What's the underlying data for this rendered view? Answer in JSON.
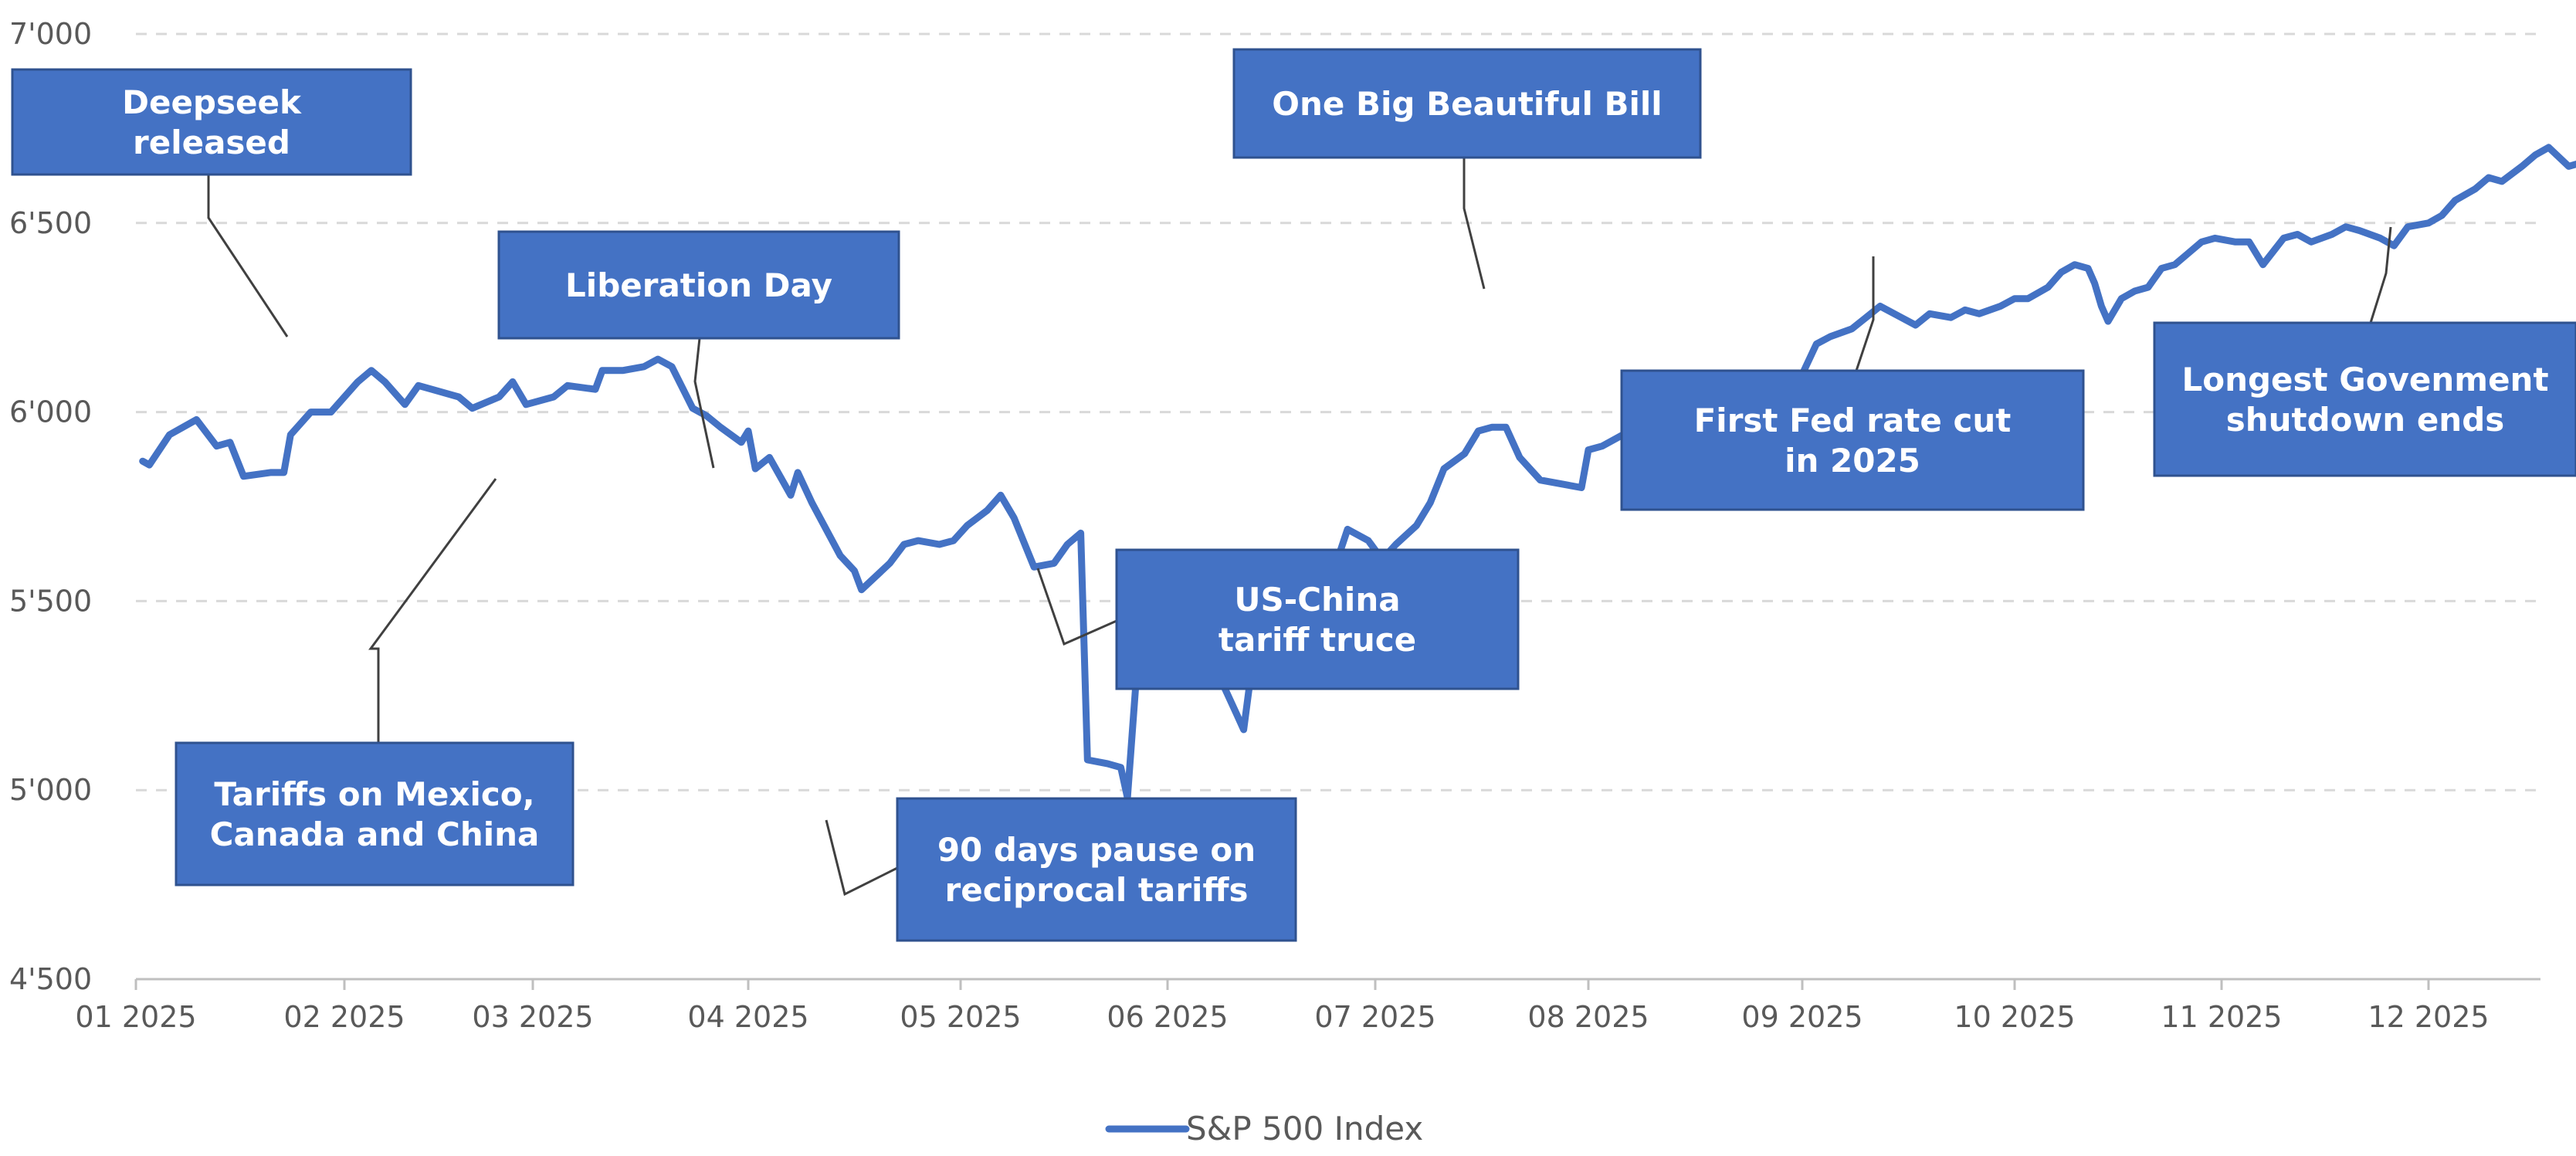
{
  "chart_data": {
    "type": "line",
    "title": "",
    "xlabel": "",
    "ylabel": "",
    "ylim": [
      4500,
      7000
    ],
    "y_ticks": [
      "4'500",
      "5'000",
      "5'500",
      "6'000",
      "6'500",
      "7'000"
    ],
    "y_tick_values": [
      4500,
      5000,
      5500,
      6000,
      6500,
      7000
    ],
    "x_ticks": [
      "01 2025",
      "02 2025",
      "03 2025",
      "04 2025",
      "05 2025",
      "06 2025",
      "07 2025",
      "08 2025",
      "09 2025",
      "10 2025",
      "11 2025",
      "12 2025"
    ],
    "grid": true,
    "legend_position": "bottom",
    "series": [
      {
        "name": "S&P 500 Index",
        "color": "#4472C4",
        "points": [
          [
            "2025-01-02",
            5870
          ],
          [
            "2025-01-03",
            5860
          ],
          [
            "2025-01-06",
            5940
          ],
          [
            "2025-01-08",
            5960
          ],
          [
            "2025-01-10",
            5980
          ],
          [
            "2025-01-13",
            5910
          ],
          [
            "2025-01-15",
            5920
          ],
          [
            "2025-01-17",
            5830
          ],
          [
            "2025-01-21",
            5840
          ],
          [
            "2025-01-23",
            5840
          ],
          [
            "2025-01-24",
            5940
          ],
          [
            "2025-01-27",
            6000
          ],
          [
            "2025-01-30",
            6000
          ],
          [
            "2025-02-03",
            6080
          ],
          [
            "2025-02-05",
            6110
          ],
          [
            "2025-02-07",
            6080
          ],
          [
            "2025-02-10",
            6020
          ],
          [
            "2025-02-12",
            6070
          ],
          [
            "2025-02-14",
            6060
          ],
          [
            "2025-02-18",
            6040
          ],
          [
            "2025-02-20",
            6010
          ],
          [
            "2025-02-24",
            6040
          ],
          [
            "2025-02-26",
            6080
          ],
          [
            "2025-02-28",
            6020
          ],
          [
            "2025-03-04",
            6040
          ],
          [
            "2025-03-06",
            6070
          ],
          [
            "2025-03-10",
            6060
          ],
          [
            "2025-03-11",
            6110
          ],
          [
            "2025-03-14",
            6110
          ],
          [
            "2025-03-17",
            6120
          ],
          [
            "2025-03-19",
            6140
          ],
          [
            "2025-03-21",
            6120
          ],
          [
            "2025-03-24",
            6010
          ],
          [
            "2025-03-26",
            5990
          ],
          [
            "2025-03-28",
            5960
          ],
          [
            "2025-03-31",
            5920
          ],
          [
            "2025-04-01",
            5950
          ],
          [
            "2025-04-02",
            5850
          ],
          [
            "2025-04-04",
            5880
          ],
          [
            "2025-04-07",
            5780
          ],
          [
            "2025-04-08",
            5840
          ],
          [
            "2025-04-10",
            5760
          ],
          [
            "2025-04-14",
            5620
          ],
          [
            "2025-04-16",
            5580
          ],
          [
            "2025-04-17",
            5530
          ],
          [
            "2025-04-21",
            5600
          ],
          [
            "2025-04-23",
            5650
          ],
          [
            "2025-04-25",
            5660
          ],
          [
            "2025-04-28",
            5650
          ],
          [
            "2025-04-30",
            5660
          ],
          [
            "2025-05-02",
            5700
          ],
          [
            "2025-05-05",
            5740
          ],
          [
            "2025-05-07",
            5780
          ],
          [
            "2025-05-09",
            5720
          ],
          [
            "2025-05-12",
            5590
          ],
          [
            "2025-05-15",
            5600
          ],
          [
            "2025-05-17",
            5650
          ],
          [
            "2025-05-19",
            5680
          ],
          [
            "2025-05-20",
            5080
          ],
          [
            "2025-05-23",
            5070
          ],
          [
            "2025-05-25",
            5060
          ],
          [
            "2025-05-26",
            4980
          ],
          [
            "2025-05-28",
            5460
          ],
          [
            "2025-05-29",
            5280
          ],
          [
            "2025-05-31",
            5350
          ],
          [
            "2025-06-02",
            5380
          ],
          [
            "2025-06-04",
            5400
          ],
          [
            "2025-06-06",
            5280
          ],
          [
            "2025-06-09",
            5280
          ],
          [
            "2025-06-11",
            5200
          ],
          [
            "2025-06-12",
            5160
          ],
          [
            "2025-06-13",
            5300
          ],
          [
            "2025-06-16",
            5450
          ],
          [
            "2025-06-18",
            5520
          ],
          [
            "2025-06-20",
            5530
          ],
          [
            "2025-06-23",
            5540
          ],
          [
            "2025-06-25",
            5580
          ],
          [
            "2025-06-27",
            5690
          ],
          [
            "2025-06-30",
            5660
          ],
          [
            "2025-07-02",
            5610
          ],
          [
            "2025-07-04",
            5650
          ],
          [
            "2025-07-07",
            5700
          ],
          [
            "2025-07-09",
            5760
          ],
          [
            "2025-07-11",
            5850
          ],
          [
            "2025-07-14",
            5890
          ],
          [
            "2025-07-16",
            5950
          ],
          [
            "2025-07-18",
            5960
          ],
          [
            "2025-07-20",
            5960
          ],
          [
            "2025-07-22",
            5880
          ],
          [
            "2025-07-25",
            5820
          ],
          [
            "2025-07-28",
            5810
          ],
          [
            "2025-07-31",
            5800
          ],
          [
            "2025-08-01",
            5900
          ],
          [
            "2025-08-03",
            5910
          ],
          [
            "2025-08-05",
            5930
          ],
          [
            "2025-08-07",
            5950
          ],
          [
            "2025-08-10",
            5970
          ],
          [
            "2025-08-12",
            6000
          ],
          [
            "2025-08-15",
            6030
          ],
          [
            "2025-08-17",
            6040
          ],
          [
            "2025-08-18",
            6000
          ],
          [
            "2025-08-20",
            6030
          ],
          [
            "2025-08-22",
            6000
          ],
          [
            "2025-08-25",
            5980
          ],
          [
            "2025-08-27",
            5990
          ],
          [
            "2025-08-29",
            6050
          ],
          [
            "2025-09-01",
            6100
          ],
          [
            "2025-09-03",
            6180
          ],
          [
            "2025-09-05",
            6200
          ],
          [
            "2025-09-08",
            6220
          ],
          [
            "2025-09-10",
            6250
          ],
          [
            "2025-09-12",
            6280
          ],
          [
            "2025-09-15",
            6250
          ],
          [
            "2025-09-17",
            6230
          ],
          [
            "2025-09-19",
            6260
          ],
          [
            "2025-09-22",
            6250
          ],
          [
            "2025-09-24",
            6270
          ],
          [
            "2025-09-26",
            6260
          ],
          [
            "2025-09-29",
            6280
          ],
          [
            "2025-10-01",
            6300
          ],
          [
            "2025-10-03",
            6300
          ],
          [
            "2025-10-06",
            6330
          ],
          [
            "2025-10-08",
            6370
          ],
          [
            "2025-10-10",
            6390
          ],
          [
            "2025-10-12",
            6380
          ],
          [
            "2025-10-13",
            6340
          ],
          [
            "2025-10-14",
            6280
          ],
          [
            "2025-10-15",
            6240
          ],
          [
            "2025-10-17",
            6300
          ],
          [
            "2025-10-19",
            6320
          ],
          [
            "2025-10-21",
            6330
          ],
          [
            "2025-10-23",
            6380
          ],
          [
            "2025-10-25",
            6390
          ],
          [
            "2025-10-27",
            6420
          ],
          [
            "2025-10-29",
            6450
          ],
          [
            "2025-10-31",
            6460
          ],
          [
            "2025-11-03",
            6450
          ],
          [
            "2025-11-05",
            6450
          ],
          [
            "2025-11-07",
            6390
          ],
          [
            "2025-11-10",
            6460
          ],
          [
            "2025-11-12",
            6470
          ],
          [
            "2025-11-14",
            6450
          ],
          [
            "2025-11-17",
            6470
          ],
          [
            "2025-11-19",
            6490
          ],
          [
            "2025-11-21",
            6480
          ],
          [
            "2025-11-24",
            6460
          ],
          [
            "2025-11-26",
            6440
          ],
          [
            "2025-11-28",
            6490
          ],
          [
            "2025-12-01",
            6500
          ],
          [
            "2025-12-03",
            6520
          ],
          [
            "2025-12-05",
            6560
          ],
          [
            "2025-12-08",
            6590
          ],
          [
            "2025-12-10",
            6620
          ],
          [
            "2025-12-12",
            6610
          ],
          [
            "2025-12-15",
            6650
          ],
          [
            "2025-12-17",
            6680
          ],
          [
            "2025-12-19",
            6700
          ],
          [
            "2025-12-22",
            6650
          ],
          [
            "2025-12-24",
            6660
          ],
          [
            "2025-12-26",
            6680
          ],
          [
            "2025-12-29",
            6690
          ],
          [
            "2026-01-01",
            6720
          ],
          [
            "2026-01-03",
            6740
          ],
          [
            "2026-01-06",
            6720
          ]
        ]
      }
    ],
    "annotations": [
      {
        "id": "deepseek",
        "lines": [
          "Deepseek",
          "released"
        ]
      },
      {
        "id": "tariffs",
        "lines": [
          "Tariffs on Mexico,",
          "Canada and China"
        ]
      },
      {
        "id": "liberation",
        "lines": [
          "Liberation Day"
        ]
      },
      {
        "id": "pause",
        "lines": [
          "90 days pause on",
          "reciprocal tariffs"
        ]
      },
      {
        "id": "uschina",
        "lines": [
          "US-China",
          "tariff truce"
        ]
      },
      {
        "id": "obbb",
        "lines": [
          "One Big Beautiful Bill"
        ]
      },
      {
        "id": "fed",
        "lines": [
          "First Fed rate cut",
          "in 2025"
        ]
      },
      {
        "id": "shutdown",
        "lines": [
          "Longest Govenment",
          "shutdown ends"
        ]
      }
    ]
  }
}
